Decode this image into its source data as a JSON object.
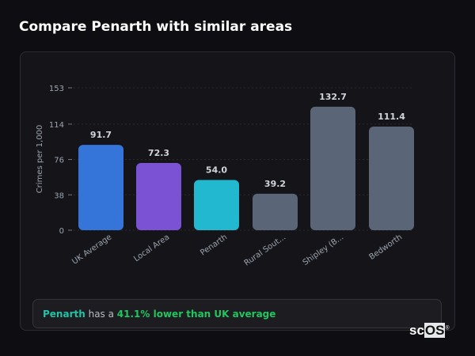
{
  "title": "Compare Penarth with similar areas",
  "chart_data": {
    "type": "bar",
    "ylabel": "Crimes per 1,000",
    "ylim": [
      0,
      153
    ],
    "yticks": [
      0,
      38,
      76,
      114,
      153
    ],
    "grid": true,
    "categories": [
      "UK Average",
      "Local Area",
      "Penarth",
      "Rural Sout...",
      "Shipley (B...",
      "Bedworth"
    ],
    "values": [
      91.7,
      72.3,
      54.0,
      39.2,
      132.7,
      111.4
    ],
    "value_labels": [
      "91.7",
      "72.3",
      "54.0",
      "39.2",
      "132.7",
      "111.4"
    ],
    "colors": [
      "#3575d9",
      "#7b52d3",
      "#21b8d0",
      "#5a6577",
      "#5a6577",
      "#5a6577"
    ]
  },
  "summary": {
    "place": "Penarth",
    "middle": " has a ",
    "stat": "41.1% lower than UK average"
  },
  "logo": {
    "prefix": "sc",
    "box": "OS",
    "mark": "®"
  }
}
